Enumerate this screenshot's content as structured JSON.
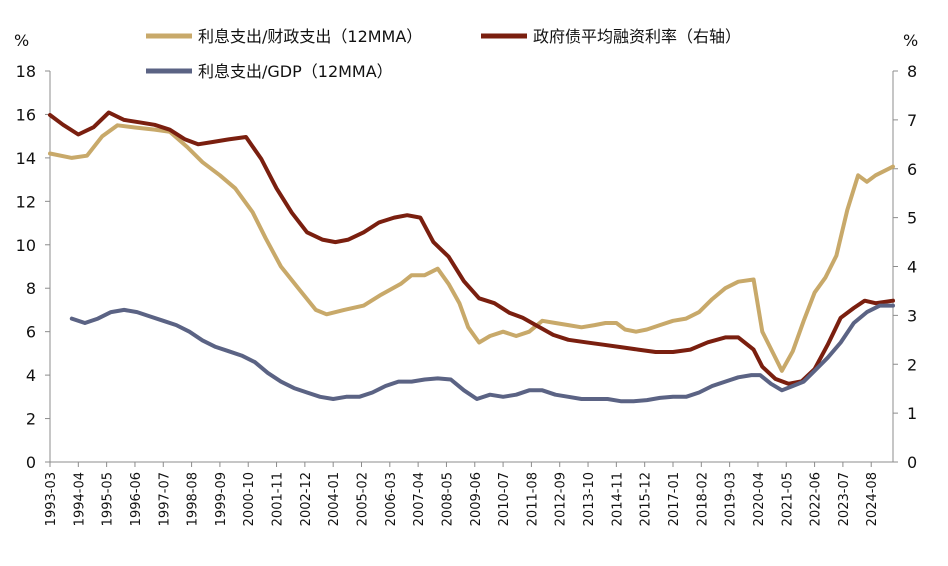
{
  "chart_data": {
    "type": "line",
    "left_unit": "%",
    "right_unit": "%",
    "ylim_left": [
      0,
      18
    ],
    "ylim_right": [
      0,
      8
    ],
    "yticks_left": [
      0,
      2,
      4,
      6,
      8,
      10,
      12,
      14,
      16,
      18
    ],
    "yticks_right": [
      0,
      1,
      2,
      3,
      4,
      5,
      6,
      7,
      8
    ],
    "x_range": [
      "1993-03",
      "2025-06"
    ],
    "x_tick_labels": [
      "1993-03",
      "1994-04",
      "1995-05",
      "1996-06",
      "1997-07",
      "1998-08",
      "1999-09",
      "2000-10",
      "2001-11",
      "2002-12",
      "2004-01",
      "2005-02",
      "2006-03",
      "2007-04",
      "2008-05",
      "2009-06",
      "2010-07",
      "2011-08",
      "2012-09",
      "2013-10",
      "2014-11",
      "2015-12",
      "2017-01",
      "2018-02",
      "2019-03",
      "2020-04",
      "2021-05",
      "2022-06",
      "2023-07",
      "2024-08"
    ],
    "grid": false,
    "legend_position": "top",
    "series": [
      {
        "name": "利息支出/财政支出（12MMA）",
        "axis": "left",
        "color": "#C8A96A",
        "points": [
          [
            "1993-03",
            14.2
          ],
          [
            "1994-01",
            14.0
          ],
          [
            "1994-08",
            14.1
          ],
          [
            "1995-03",
            15.0
          ],
          [
            "1995-10",
            15.5
          ],
          [
            "1996-06",
            15.4
          ],
          [
            "1997-03",
            15.3
          ],
          [
            "1997-10",
            15.2
          ],
          [
            "1998-06",
            14.5
          ],
          [
            "1999-01",
            13.8
          ],
          [
            "1999-09",
            13.2
          ],
          [
            "2000-04",
            12.6
          ],
          [
            "2000-12",
            11.5
          ],
          [
            "2001-06",
            10.3
          ],
          [
            "2002-01",
            9.0
          ],
          [
            "2002-09",
            8.0
          ],
          [
            "2003-05",
            7.0
          ],
          [
            "2003-10",
            6.8
          ],
          [
            "2004-06",
            7.0
          ],
          [
            "2005-03",
            7.2
          ],
          [
            "2005-11",
            7.7
          ],
          [
            "2006-08",
            8.2
          ],
          [
            "2007-01",
            8.6
          ],
          [
            "2007-07",
            8.6
          ],
          [
            "2008-01",
            8.9
          ],
          [
            "2008-06",
            8.2
          ],
          [
            "2008-11",
            7.3
          ],
          [
            "2009-03",
            6.2
          ],
          [
            "2009-08",
            5.5
          ],
          [
            "2010-01",
            5.8
          ],
          [
            "2010-07",
            6.0
          ],
          [
            "2011-01",
            5.8
          ],
          [
            "2011-07",
            6.0
          ],
          [
            "2012-01",
            6.5
          ],
          [
            "2012-07",
            6.4
          ],
          [
            "2013-01",
            6.3
          ],
          [
            "2013-07",
            6.2
          ],
          [
            "2014-01",
            6.3
          ],
          [
            "2014-06",
            6.4
          ],
          [
            "2014-11",
            6.4
          ],
          [
            "2015-03",
            6.1
          ],
          [
            "2015-08",
            6.0
          ],
          [
            "2016-01",
            6.1
          ],
          [
            "2016-07",
            6.3
          ],
          [
            "2017-01",
            6.5
          ],
          [
            "2017-07",
            6.6
          ],
          [
            "2018-01",
            6.9
          ],
          [
            "2018-07",
            7.5
          ],
          [
            "2019-01",
            8.0
          ],
          [
            "2019-07",
            8.3
          ],
          [
            "2020-02",
            8.4
          ],
          [
            "2020-06",
            6.0
          ],
          [
            "2020-11",
            5.0
          ],
          [
            "2021-03",
            4.2
          ],
          [
            "2021-08",
            5.1
          ],
          [
            "2022-01",
            6.5
          ],
          [
            "2022-06",
            7.8
          ],
          [
            "2022-11",
            8.5
          ],
          [
            "2023-04",
            9.5
          ],
          [
            "2023-09",
            11.6
          ],
          [
            "2024-02",
            13.2
          ],
          [
            "2024-06",
            12.9
          ],
          [
            "2024-10",
            13.2
          ],
          [
            "2025-06",
            13.6
          ]
        ]
      },
      {
        "name": "政府债平均融资利率（右轴）",
        "axis": "right",
        "color": "#7A1F0F",
        "points": [
          [
            "1993-03",
            7.1
          ],
          [
            "1993-09",
            6.9
          ],
          [
            "1994-04",
            6.7
          ],
          [
            "1994-11",
            6.85
          ],
          [
            "1995-06",
            7.15
          ],
          [
            "1996-01",
            7.0
          ],
          [
            "1996-08",
            6.95
          ],
          [
            "1997-03",
            6.9
          ],
          [
            "1997-10",
            6.8
          ],
          [
            "1998-05",
            6.6
          ],
          [
            "1998-11",
            6.5
          ],
          [
            "1999-06",
            6.55
          ],
          [
            "2000-01",
            6.6
          ],
          [
            "2000-09",
            6.65
          ],
          [
            "2001-04",
            6.2
          ],
          [
            "2001-11",
            5.6
          ],
          [
            "2002-06",
            5.1
          ],
          [
            "2003-01",
            4.7
          ],
          [
            "2003-08",
            4.55
          ],
          [
            "2004-02",
            4.5
          ],
          [
            "2004-08",
            4.55
          ],
          [
            "2005-03",
            4.7
          ],
          [
            "2005-10",
            4.9
          ],
          [
            "2006-05",
            5.0
          ],
          [
            "2006-11",
            5.05
          ],
          [
            "2007-05",
            5.0
          ],
          [
            "2007-11",
            4.5
          ],
          [
            "2008-06",
            4.2
          ],
          [
            "2009-01",
            3.7
          ],
          [
            "2009-08",
            3.35
          ],
          [
            "2010-03",
            3.25
          ],
          [
            "2010-10",
            3.05
          ],
          [
            "2011-04",
            2.95
          ],
          [
            "2011-10",
            2.8
          ],
          [
            "2012-06",
            2.6
          ],
          [
            "2013-01",
            2.5
          ],
          [
            "2013-09",
            2.45
          ],
          [
            "2014-05",
            2.4
          ],
          [
            "2015-01",
            2.35
          ],
          [
            "2015-09",
            2.3
          ],
          [
            "2016-05",
            2.25
          ],
          [
            "2017-01",
            2.25
          ],
          [
            "2017-09",
            2.3
          ],
          [
            "2018-05",
            2.45
          ],
          [
            "2019-01",
            2.55
          ],
          [
            "2019-07",
            2.55
          ],
          [
            "2020-02",
            2.3
          ],
          [
            "2020-06",
            1.95
          ],
          [
            "2020-12",
            1.7
          ],
          [
            "2021-06",
            1.6
          ],
          [
            "2021-12",
            1.65
          ],
          [
            "2022-06",
            1.9
          ],
          [
            "2022-12",
            2.4
          ],
          [
            "2023-06",
            2.95
          ],
          [
            "2023-12",
            3.15
          ],
          [
            "2024-05",
            3.3
          ],
          [
            "2024-10",
            3.25
          ],
          [
            "2025-06",
            3.3
          ]
        ]
      },
      {
        "name": "利息支出/GDP（12MMA）",
        "axis": "left",
        "color": "#5B6384",
        "points": [
          [
            "1994-01",
            6.6
          ],
          [
            "1994-07",
            6.4
          ],
          [
            "1995-01",
            6.6
          ],
          [
            "1995-07",
            6.9
          ],
          [
            "1996-01",
            7.0
          ],
          [
            "1996-07",
            6.9
          ],
          [
            "1997-01",
            6.7
          ],
          [
            "1997-07",
            6.5
          ],
          [
            "1998-01",
            6.3
          ],
          [
            "1998-07",
            6.0
          ],
          [
            "1999-01",
            5.6
          ],
          [
            "1999-07",
            5.3
          ],
          [
            "2000-01",
            5.1
          ],
          [
            "2000-07",
            4.9
          ],
          [
            "2001-01",
            4.6
          ],
          [
            "2001-07",
            4.1
          ],
          [
            "2002-01",
            3.7
          ],
          [
            "2002-07",
            3.4
          ],
          [
            "2003-01",
            3.2
          ],
          [
            "2003-07",
            3.0
          ],
          [
            "2004-01",
            2.9
          ],
          [
            "2004-07",
            3.0
          ],
          [
            "2005-01",
            3.0
          ],
          [
            "2005-07",
            3.2
          ],
          [
            "2006-01",
            3.5
          ],
          [
            "2006-07",
            3.7
          ],
          [
            "2007-01",
            3.7
          ],
          [
            "2007-07",
            3.8
          ],
          [
            "2008-01",
            3.85
          ],
          [
            "2008-07",
            3.8
          ],
          [
            "2009-01",
            3.3
          ],
          [
            "2009-07",
            2.9
          ],
          [
            "2010-01",
            3.1
          ],
          [
            "2010-07",
            3.0
          ],
          [
            "2011-01",
            3.1
          ],
          [
            "2011-07",
            3.3
          ],
          [
            "2012-01",
            3.3
          ],
          [
            "2012-07",
            3.1
          ],
          [
            "2013-01",
            3.0
          ],
          [
            "2013-07",
            2.9
          ],
          [
            "2014-01",
            2.9
          ],
          [
            "2014-07",
            2.9
          ],
          [
            "2015-01",
            2.8
          ],
          [
            "2015-07",
            2.8
          ],
          [
            "2016-01",
            2.85
          ],
          [
            "2016-07",
            2.95
          ],
          [
            "2017-01",
            3.0
          ],
          [
            "2017-07",
            3.0
          ],
          [
            "2018-01",
            3.2
          ],
          [
            "2018-07",
            3.5
          ],
          [
            "2019-01",
            3.7
          ],
          [
            "2019-07",
            3.9
          ],
          [
            "2020-01",
            4.0
          ],
          [
            "2020-05",
            4.0
          ],
          [
            "2020-10",
            3.6
          ],
          [
            "2021-03",
            3.3
          ],
          [
            "2021-08",
            3.5
          ],
          [
            "2022-01",
            3.7
          ],
          [
            "2022-06",
            4.2
          ],
          [
            "2022-12",
            4.8
          ],
          [
            "2023-06",
            5.5
          ],
          [
            "2023-12",
            6.4
          ],
          [
            "2024-06",
            6.9
          ],
          [
            "2024-12",
            7.2
          ],
          [
            "2025-06",
            7.2
          ]
        ]
      }
    ]
  }
}
